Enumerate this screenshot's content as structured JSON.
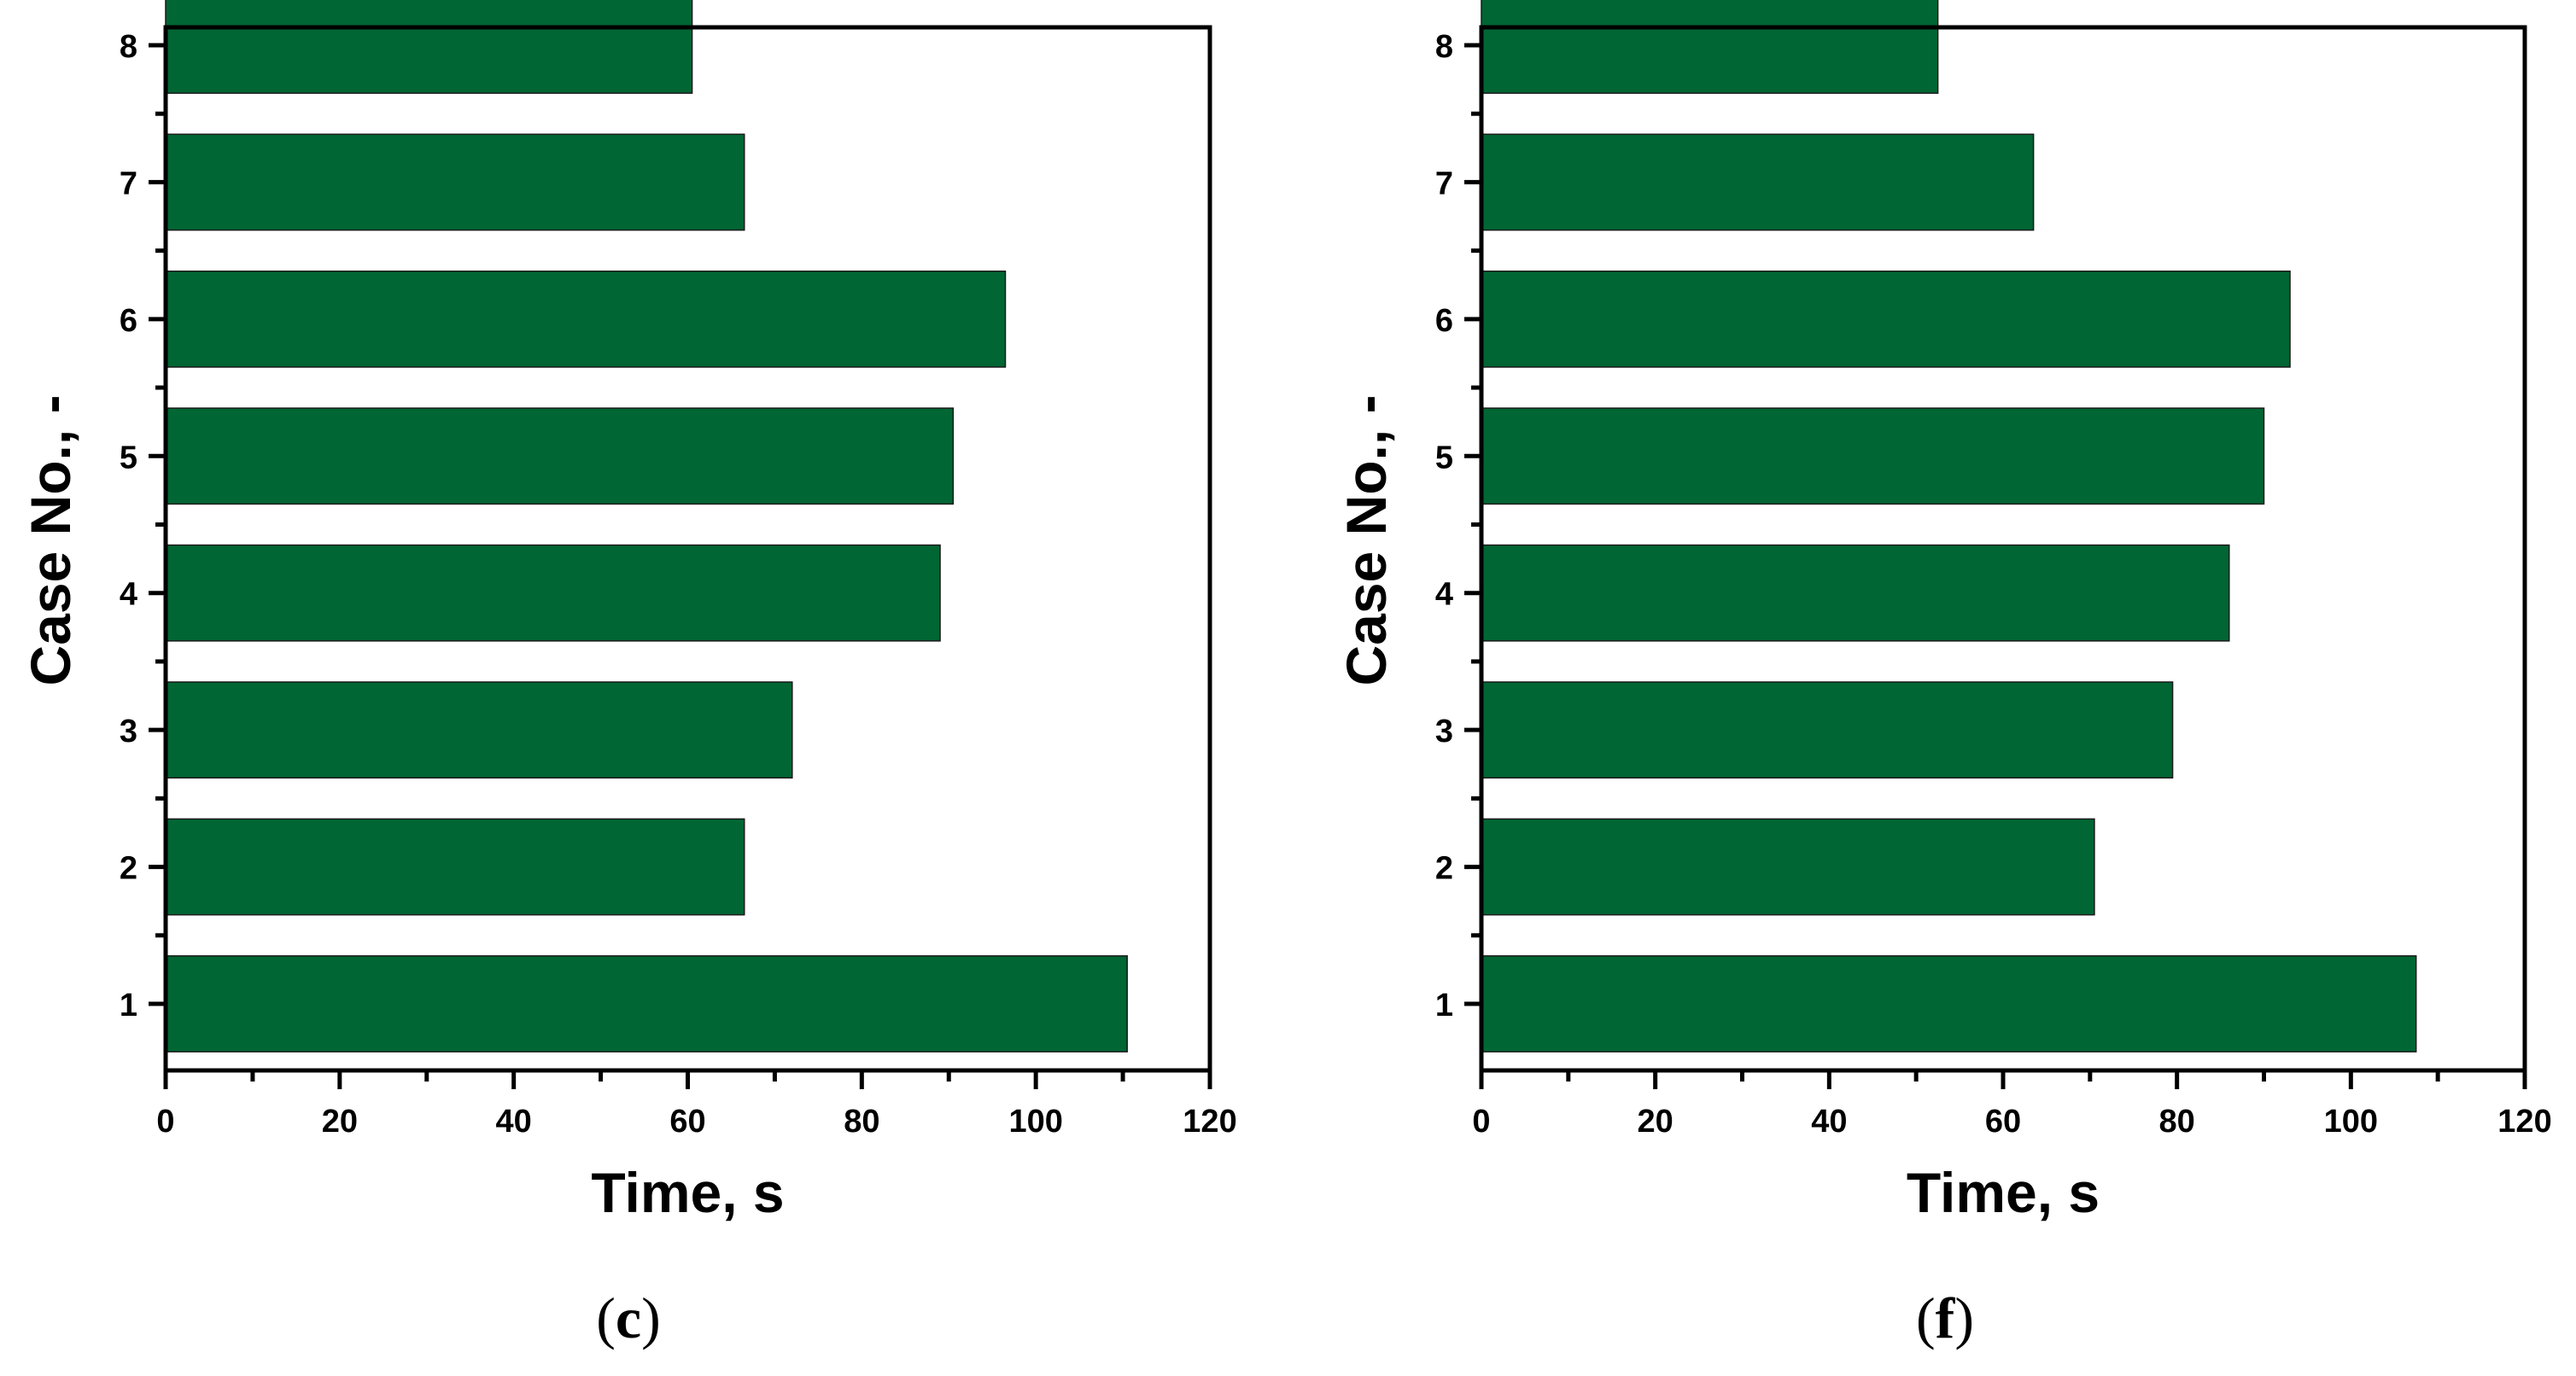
{
  "chart_data": [
    {
      "type": "bar",
      "orientation": "horizontal",
      "panel_label": "c",
      "categories": [
        "1",
        "2",
        "3",
        "4",
        "5",
        "6",
        "7",
        "8"
      ],
      "values": [
        110.5,
        66.5,
        72,
        89,
        90.5,
        96.5,
        66.5,
        60.5
      ],
      "xlabel": "Time, s",
      "ylabel": "Case No., -",
      "xlim": [
        0,
        120
      ],
      "xticks": [
        "0",
        "20",
        "40",
        "60",
        "80",
        "100",
        "120"
      ],
      "bar_color": "#006633",
      "grid": false
    },
    {
      "type": "bar",
      "orientation": "horizontal",
      "panel_label": "f",
      "categories": [
        "1",
        "2",
        "3",
        "4",
        "5",
        "6",
        "7",
        "8"
      ],
      "values": [
        107.5,
        70.5,
        79.5,
        86,
        90,
        93,
        63.5,
        52.5
      ],
      "xlabel": "Time, s",
      "ylabel": "Case No., -",
      "xlim": [
        0,
        120
      ],
      "xticks": [
        "0",
        "20",
        "40",
        "60",
        "80",
        "100",
        "120"
      ],
      "bar_color": "#006633",
      "grid": false
    }
  ]
}
